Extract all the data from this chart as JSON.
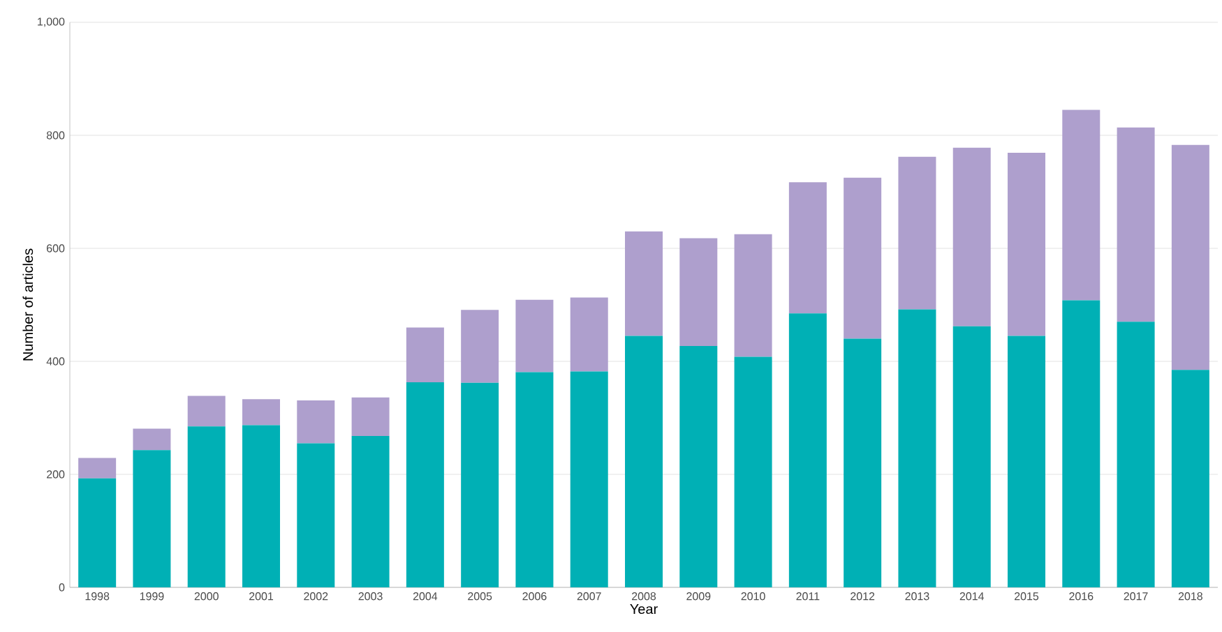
{
  "chart_data": {
    "type": "bar",
    "stacked": true,
    "xlabel": "Year",
    "ylabel": "Number of articles",
    "categories": [
      "1998",
      "1999",
      "2000",
      "2001",
      "2002",
      "2003",
      "2004",
      "2005",
      "2006",
      "2007",
      "2008",
      "2009",
      "2010",
      "2011",
      "2012",
      "2013",
      "2014",
      "2015",
      "2016",
      "2017",
      "2018"
    ],
    "series": [
      {
        "color": "#00b0b5",
        "values": [
          193,
          243,
          285,
          287,
          255,
          268,
          363,
          362,
          381,
          382,
          445,
          427,
          408,
          485,
          440,
          492,
          462,
          445,
          508,
          470,
          385
        ]
      },
      {
        "color": "#ae9fcd",
        "values": [
          36,
          38,
          54,
          46,
          76,
          68,
          97,
          129,
          128,
          131,
          185,
          191,
          217,
          232,
          285,
          270,
          316,
          324,
          337,
          344,
          398
        ]
      }
    ],
    "ylim": [
      0,
      1000
    ],
    "yticks": [
      0,
      200,
      400,
      600,
      800,
      {
        "value": 1000,
        "label": "1,000"
      }
    ],
    "grid": "y"
  }
}
